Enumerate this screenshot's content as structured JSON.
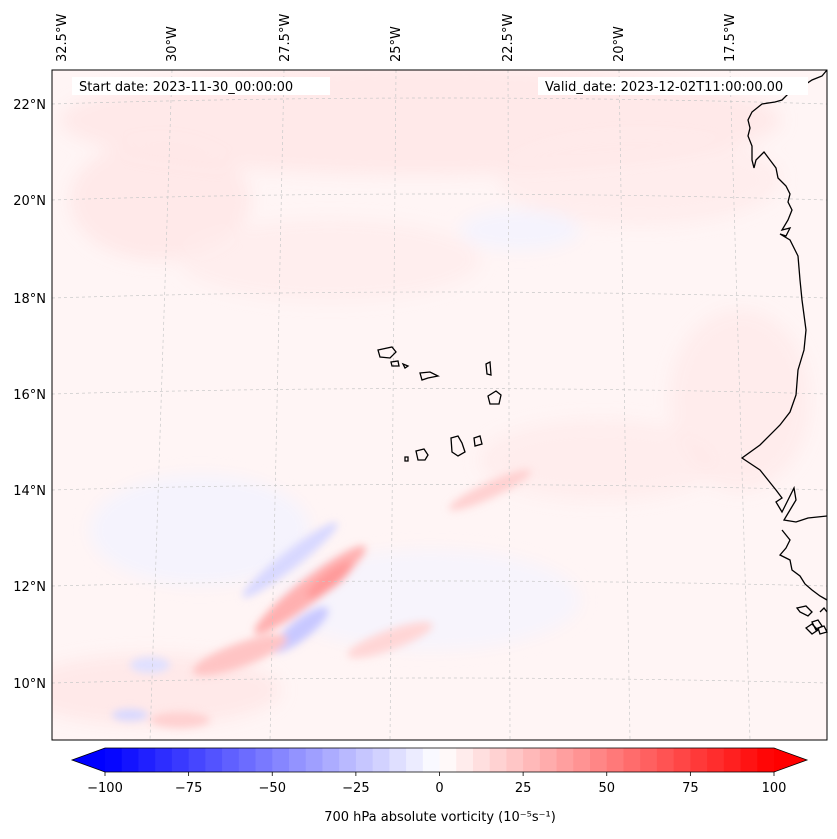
{
  "map": {
    "start_date": "Start date: 2023-11-30_00:00:00",
    "valid_date": "Valid_date: 2023-12-02T11:00:00.00",
    "lon_labels": [
      "32.5°W",
      "30°W",
      "27.5°W",
      "25°W",
      "22.5°W",
      "20°W",
      "17.5°W"
    ],
    "lat_labels": [
      "22°N",
      "20°N",
      "18°N",
      "16°N",
      "14°N",
      "12°N",
      "10°N"
    ],
    "variable": "700 hPa absolute vorticity",
    "units": "10⁻⁵s⁻¹",
    "colors": {
      "negative": "#0000ff",
      "zero": "#ffffff",
      "positive": "#ff0000",
      "coastline": "#000000",
      "gridline": "#c8c8c8"
    }
  },
  "colorbar": {
    "min": -100,
    "max": 100,
    "ticks": [
      -100,
      -75,
      -50,
      -25,
      0,
      25,
      50,
      75,
      100
    ],
    "tick_labels": [
      "−100",
      "−75",
      "−50",
      "−25",
      "0",
      "25",
      "50",
      "75",
      "100"
    ],
    "levels": 41,
    "extend": "both"
  }
}
